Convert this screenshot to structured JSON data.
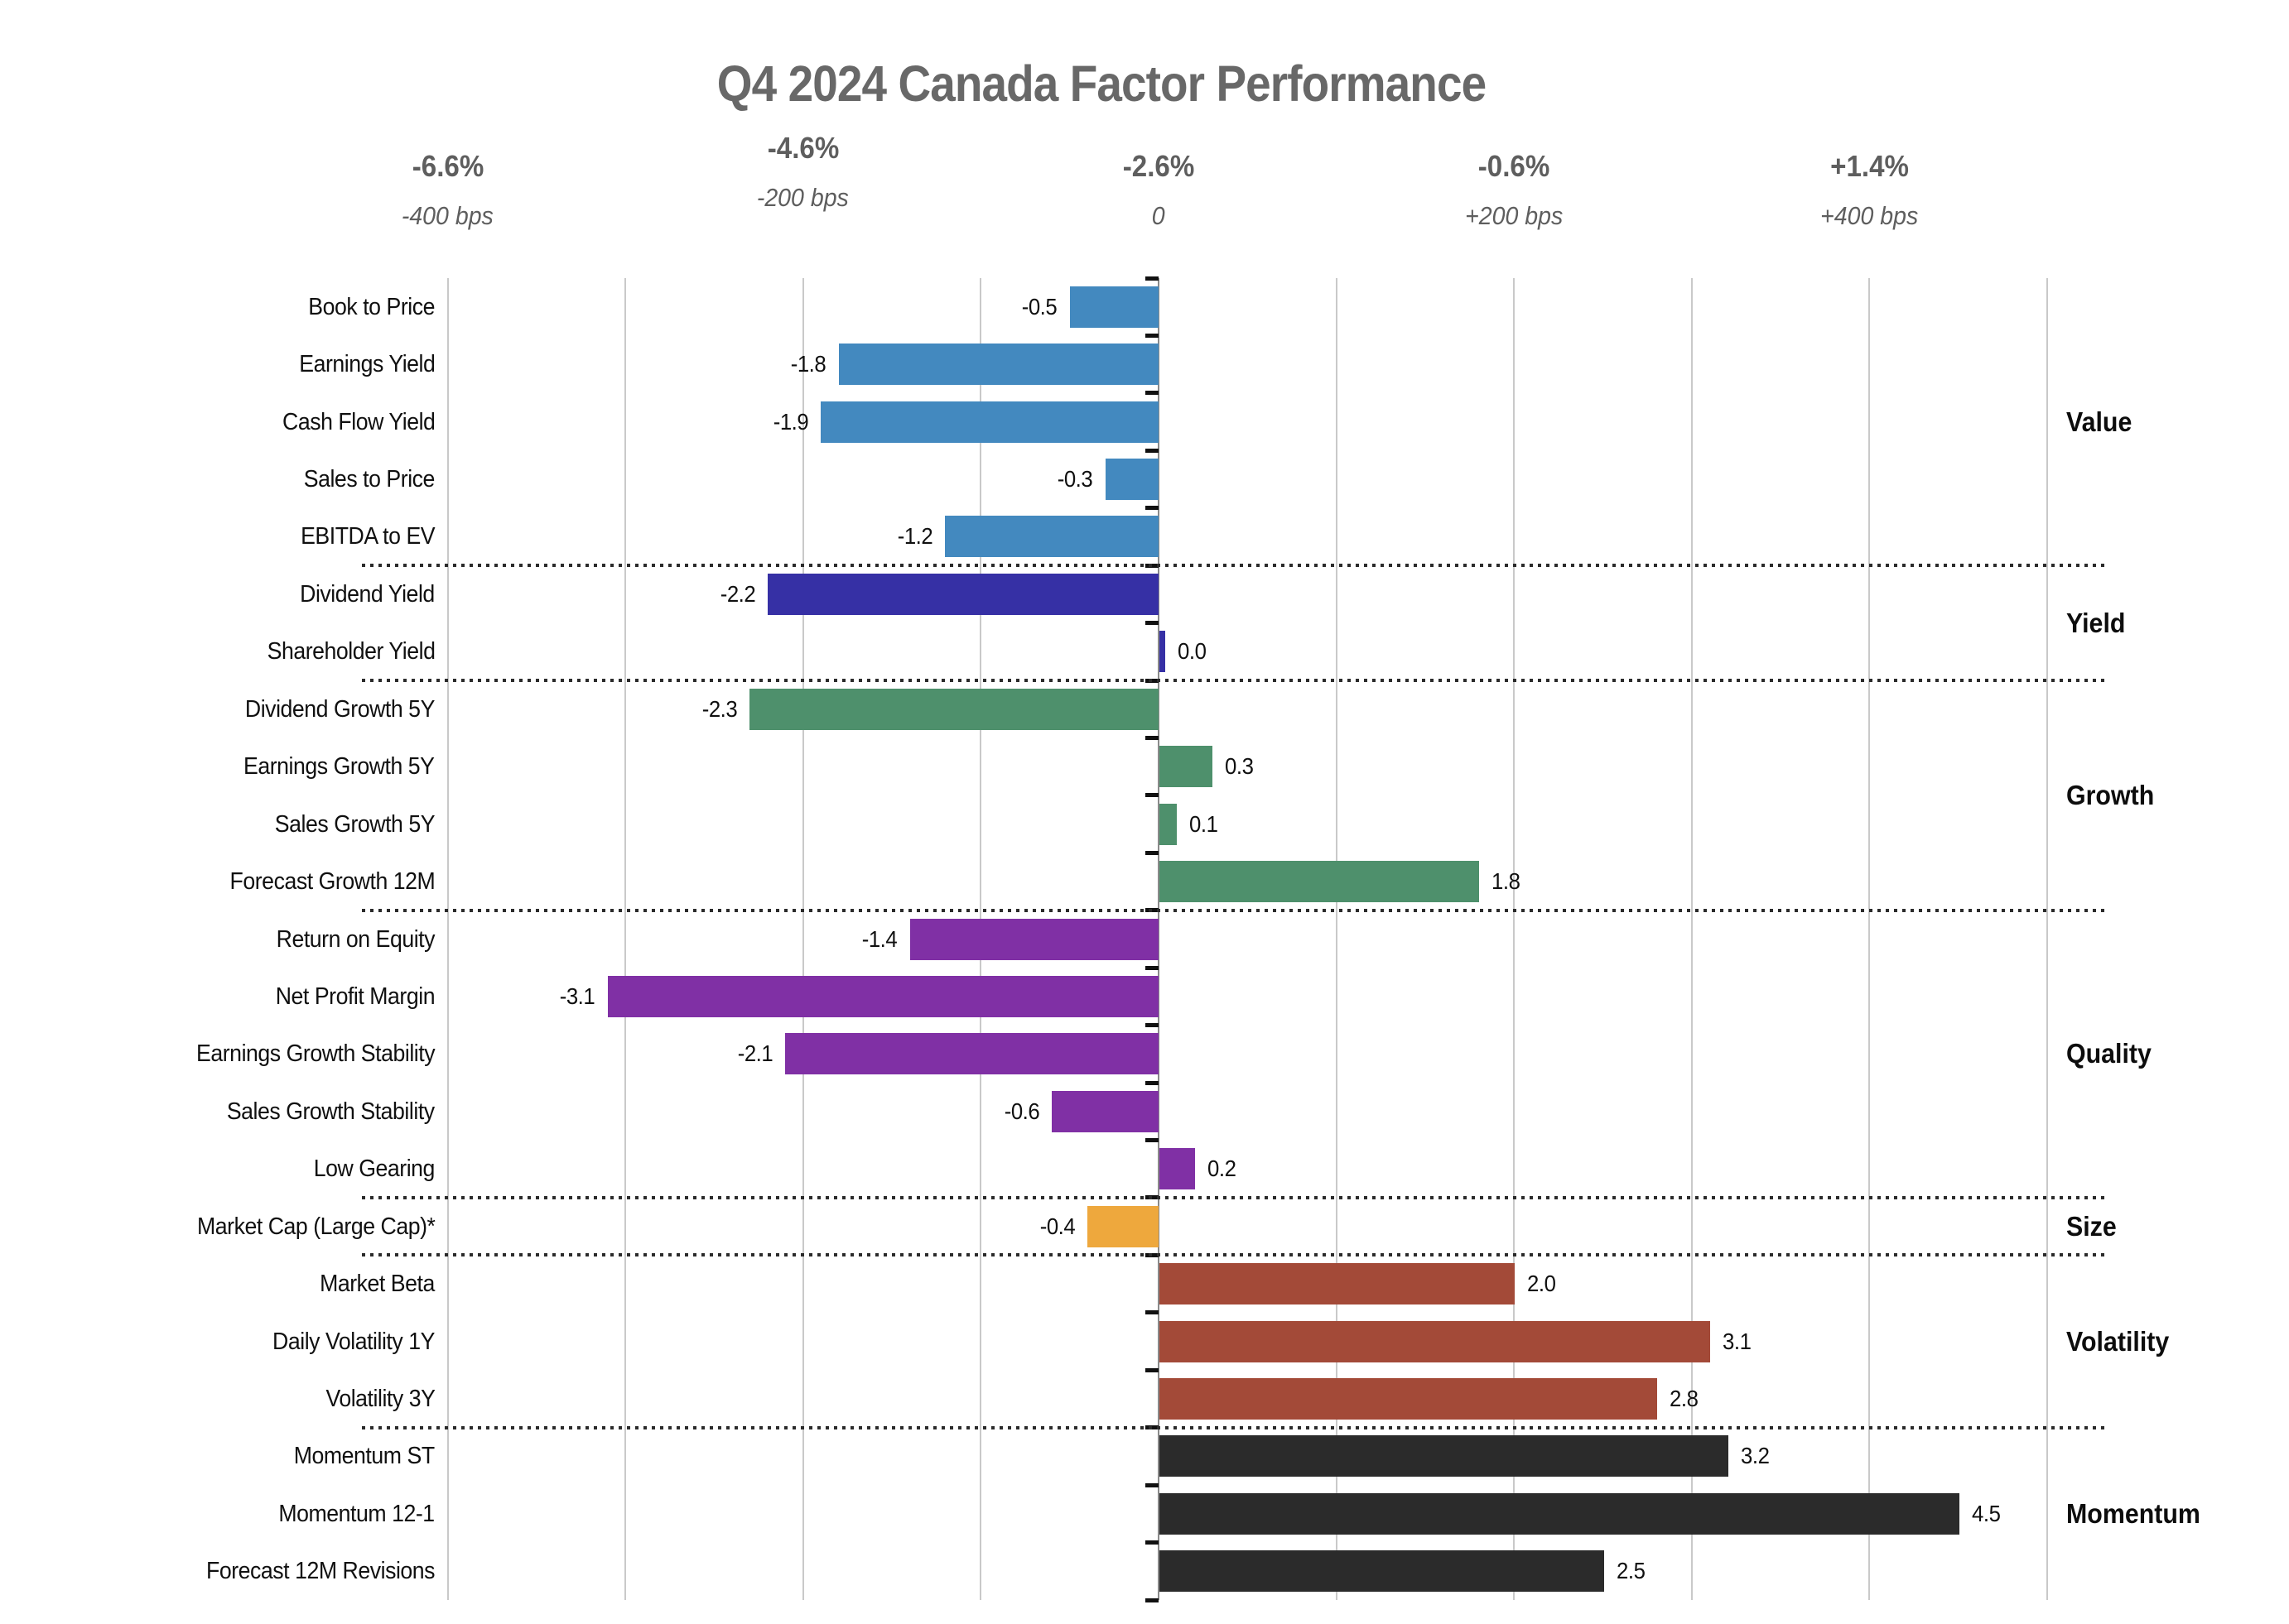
{
  "title": "Q4 2024 Canada Factor Performance",
  "colors": {
    "value_blue": "#4389BF",
    "yield_navy": "#3630A5",
    "growth_green": "#4E906C",
    "quality_purple": "#8030A5",
    "size_orange": "#EEA83D",
    "volatility_brick": "#A34A38",
    "momentum_black": "#2B2B2B",
    "title_gray": "#686868",
    "axis_label_gray": "#5E5E5E",
    "gridline_gray": "#C9C9C9"
  },
  "chart_data": {
    "type": "bar",
    "orientation": "horizontal",
    "title": "Q4 2024 Canada Factor Performance",
    "value_units": "percent active return (bar labels), basis points (axis)",
    "x_axis": {
      "top_labels": [
        {
          "pct": "-6.6%",
          "bps": "-400 bps",
          "bps_value": -400
        },
        {
          "pct": "-4.6%",
          "bps": "-200 bps",
          "bps_value": -200
        },
        {
          "pct": "-2.6%",
          "bps": "0",
          "bps_value": 0
        },
        {
          "pct": "-0.6%",
          "bps": "+200 bps",
          "bps_value": 200
        },
        {
          "pct": "+1.4%",
          "bps": "+400 bps",
          "bps_value": 400
        }
      ],
      "gridlines_bps": [
        -400,
        -300,
        -200,
        -100,
        0,
        100,
        200,
        300,
        400,
        500
      ],
      "grid": true,
      "zero_line": true
    },
    "groups": [
      {
        "name": "Value",
        "color": "#4389BF",
        "factors": [
          {
            "label": "Book to Price",
            "value": -0.5
          },
          {
            "label": "Earnings Yield",
            "value": -1.8
          },
          {
            "label": "Cash Flow Yield",
            "value": -1.9
          },
          {
            "label": "Sales to Price",
            "value": -0.3
          },
          {
            "label": "EBITDA to EV",
            "value": -1.2
          }
        ]
      },
      {
        "name": "Yield",
        "color": "#3630A5",
        "factors": [
          {
            "label": "Dividend Yield",
            "value": -2.2
          },
          {
            "label": "Shareholder Yield",
            "value": 0.0
          }
        ]
      },
      {
        "name": "Growth",
        "color": "#4E906C",
        "factors": [
          {
            "label": "Dividend Growth 5Y",
            "value": -2.3
          },
          {
            "label": "Earnings Growth 5Y",
            "value": 0.3
          },
          {
            "label": "Sales Growth 5Y",
            "value": 0.1
          },
          {
            "label": "Forecast Growth 12M",
            "value": 1.8
          }
        ]
      },
      {
        "name": "Quality",
        "color": "#8030A5",
        "factors": [
          {
            "label": "Return on Equity",
            "value": -1.4
          },
          {
            "label": "Net Profit Margin",
            "value": -3.1
          },
          {
            "label": "Earnings Growth Stability",
            "value": -2.1
          },
          {
            "label": "Sales Growth Stability",
            "value": -0.6
          },
          {
            "label": "Low Gearing",
            "value": 0.2
          }
        ]
      },
      {
        "name": "Size",
        "color": "#EEA83D",
        "factors": [
          {
            "label": "Market Cap (Large Cap)*",
            "value": -0.4
          }
        ]
      },
      {
        "name": "Volatility",
        "color": "#A34A38",
        "factors": [
          {
            "label": "Market Beta",
            "value": 2.0
          },
          {
            "label": "Daily Volatility 1Y",
            "value": 3.1
          },
          {
            "label": "Volatility 3Y",
            "value": 2.8
          }
        ]
      },
      {
        "name": "Momentum",
        "color": "#2B2B2B",
        "factors": [
          {
            "label": "Momentum ST",
            "value": 3.2
          },
          {
            "label": "Momentum 12-1",
            "value": 4.5
          },
          {
            "label": "Forecast 12M Revisions",
            "value": 2.5
          }
        ]
      }
    ]
  }
}
